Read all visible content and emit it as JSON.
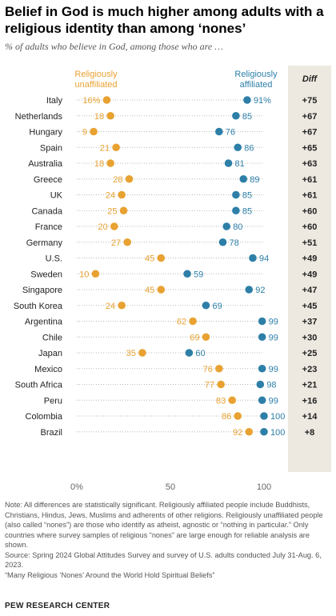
{
  "header": {
    "title": "Belief in God is much higher among adults with a religious identity than among ‘nones’",
    "subtitle": "% of adults who believe in God, among those who are …"
  },
  "colors": {
    "unaffiliated": "#e8a231",
    "affiliated": "#2d7fa8",
    "diff_bg": "#ede9e1"
  },
  "chart_data": {
    "type": "scatter",
    "legend": {
      "unaffiliated": "Religiously unaffiliated",
      "affiliated": "Religiously affiliated",
      "diff": "Diff"
    },
    "xlim": [
      0,
      100
    ],
    "x_ticks": [
      "0%",
      "50",
      "100"
    ],
    "rows": [
      {
        "country": "Italy",
        "unaffiliated": "16%",
        "affiliated": "91%",
        "diff": "+75"
      },
      {
        "country": "Netherlands",
        "unaffiliated": "18",
        "affiliated": "85",
        "diff": "+67"
      },
      {
        "country": "Hungary",
        "unaffiliated": "9",
        "affiliated": "76",
        "diff": "+67"
      },
      {
        "country": "Spain",
        "unaffiliated": "21",
        "affiliated": "86",
        "diff": "+65"
      },
      {
        "country": "Australia",
        "unaffiliated": "18",
        "affiliated": "81",
        "diff": "+63"
      },
      {
        "country": "Greece",
        "unaffiliated": "28",
        "affiliated": "89",
        "diff": "+61"
      },
      {
        "country": "UK",
        "unaffiliated": "24",
        "affiliated": "85",
        "diff": "+61"
      },
      {
        "country": "Canada",
        "unaffiliated": "25",
        "affiliated": "85",
        "diff": "+60"
      },
      {
        "country": "France",
        "unaffiliated": "20",
        "affiliated": "80",
        "diff": "+60"
      },
      {
        "country": "Germany",
        "unaffiliated": "27",
        "affiliated": "78",
        "diff": "+51"
      },
      {
        "country": "U.S.",
        "unaffiliated": "45",
        "affiliated": "94",
        "diff": "+49"
      },
      {
        "country": "Sweden",
        "unaffiliated": "10",
        "affiliated": "59",
        "diff": "+49"
      },
      {
        "country": "Singapore",
        "unaffiliated": "45",
        "affiliated": "92",
        "diff": "+47"
      },
      {
        "country": "South Korea",
        "unaffiliated": "24",
        "affiliated": "69",
        "diff": "+45"
      },
      {
        "country": "Argentina",
        "unaffiliated": "62",
        "affiliated": "99",
        "diff": "+37"
      },
      {
        "country": "Chile",
        "unaffiliated": "69",
        "affiliated": "99",
        "diff": "+30"
      },
      {
        "country": "Japan",
        "unaffiliated": "35",
        "affiliated": "60",
        "diff": "+25"
      },
      {
        "country": "Mexico",
        "unaffiliated": "76",
        "affiliated": "99",
        "diff": "+23"
      },
      {
        "country": "South Africa",
        "unaffiliated": "77",
        "affiliated": "98",
        "diff": "+21"
      },
      {
        "country": "Peru",
        "unaffiliated": "83",
        "affiliated": "99",
        "diff": "+16"
      },
      {
        "country": "Colombia",
        "unaffiliated": "86",
        "affiliated": "100",
        "diff": "+14"
      },
      {
        "country": "Brazil",
        "unaffiliated": "92",
        "affiliated": "100",
        "diff": "+8"
      }
    ]
  },
  "notes": {
    "note": "Note: All differences are statistically significant. Religiously affiliated people include Buddhists, Christians, Hindus, Jews, Muslims and adherents of other religions. Religiously unaffiliated people (also called “nones”) are those who identify as atheist, agnostic or “nothing in particular.” Only countries where survey samples of religious “nones” are large enough for reliable analysis are shown.",
    "source": "Source: Spring 2024 Global Attitudes Survey and survey of U.S. adults conducted July 31-Aug. 6, 2023.",
    "report": "“Many Religious ‘Nones’ Around the World Hold Spiritual Beliefs”"
  },
  "footer": {
    "org": "PEW RESEARCH CENTER"
  }
}
